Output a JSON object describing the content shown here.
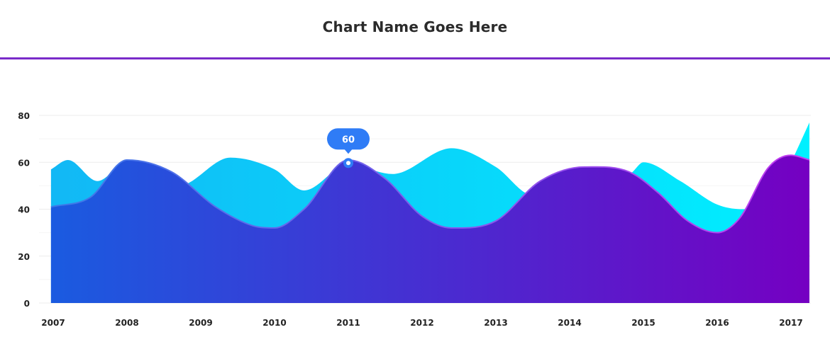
{
  "header": {
    "title": "Chart Name Goes Here"
  },
  "colors": {
    "accent_line": "#7a2bc9",
    "back_area_start": "#12b8f5",
    "back_area_end": "#00f0ff",
    "front_area_start": "#1a5be0",
    "front_area_end": "#7500c2",
    "front_stroke_start": "#3a7be8",
    "front_stroke_end": "#c43cf0",
    "tooltip": "#2f7cf6",
    "grid": "#ececec"
  },
  "chart_data": {
    "type": "area",
    "categories": [
      "2007",
      "2008",
      "2009",
      "2010",
      "2011",
      "2012",
      "2013",
      "2014",
      "2015",
      "2016",
      "2017"
    ],
    "yticks": [
      "0",
      "20",
      "40",
      "60",
      "80"
    ],
    "ylim": [
      0,
      80
    ],
    "grid": true,
    "series": [
      {
        "x": [
          2006.97,
          2007.2,
          2007.6,
          2008.0,
          2008.7,
          2009.4,
          2010.0,
          2010.4,
          2011.0,
          2011.6,
          2012.4,
          2013.0,
          2013.5,
          2014.0,
          2014.8,
          2015.0,
          2015.5,
          2016.0,
          2016.35,
          2016.8,
          2017.0,
          2017.25
        ],
        "values": [
          57,
          61,
          52,
          60,
          50,
          62,
          57,
          48,
          59,
          55,
          66,
          58,
          46,
          55,
          55,
          60,
          52,
          42,
          40,
          48,
          60,
          77
        ]
      },
      {
        "x": [
          2006.97,
          2007.5,
          2008.0,
          2008.6,
          2009.2,
          2009.7,
          2010.0,
          2010.4,
          2011.0,
          2011.5,
          2012.0,
          2012.4,
          2013.0,
          2013.6,
          2014.2,
          2014.8,
          2015.2,
          2015.6,
          2016.0,
          2016.3,
          2016.7,
          2017.0,
          2017.25
        ],
        "values": [
          41,
          45,
          61,
          56,
          41,
          33,
          32,
          40,
          61,
          53,
          37,
          32,
          35,
          52,
          58,
          56,
          47,
          35,
          30,
          36,
          58,
          63,
          61
        ]
      }
    ],
    "tooltip": {
      "category": "2011",
      "value": "60"
    }
  }
}
